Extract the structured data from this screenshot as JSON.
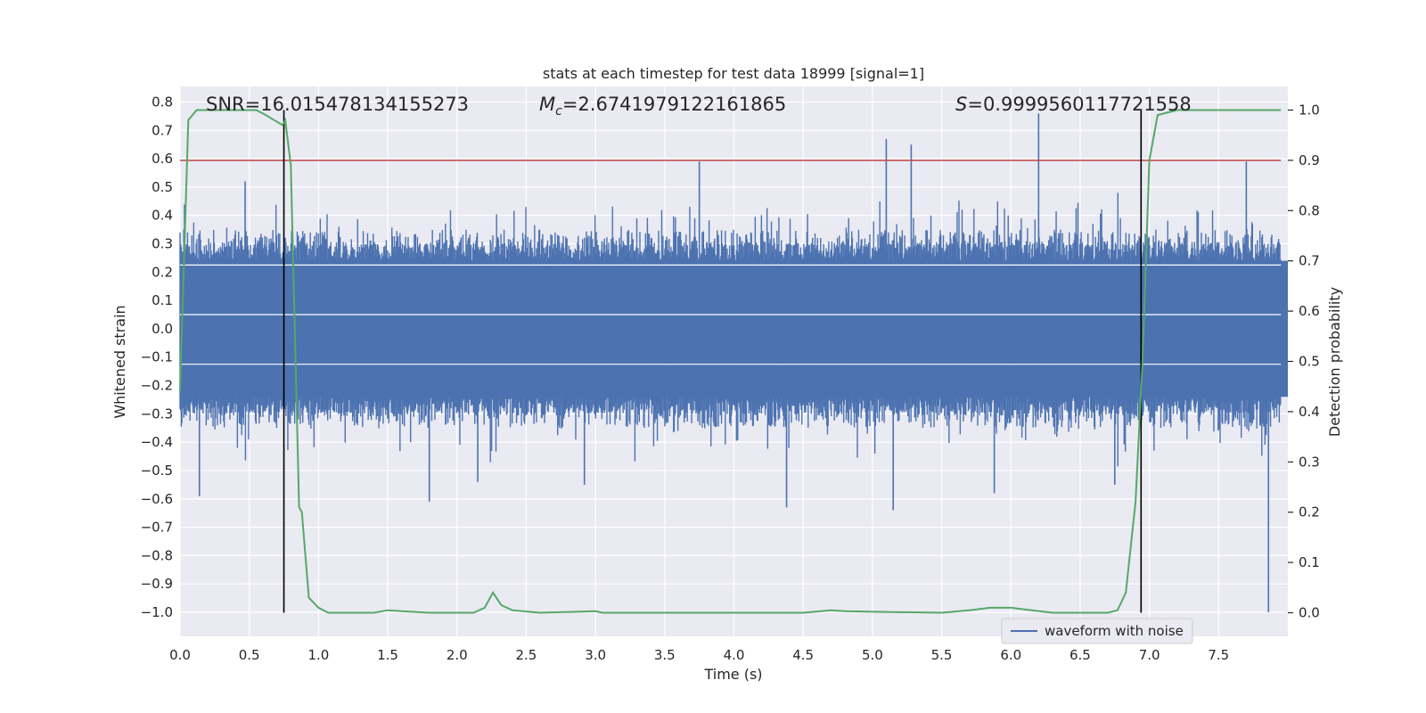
{
  "chart_data": {
    "type": "line",
    "title": "stats at each timestep for test data 18999 [signal=1]",
    "xlabel": "Time (s)",
    "ylabel": "Whitened strain",
    "y2label": "Detection probability",
    "xlim": [
      0.0,
      8.0
    ],
    "ylim": [
      -1.085,
      0.855
    ],
    "y2lim": [
      -0.047,
      1.047
    ],
    "x_ticks": [
      0.0,
      0.5,
      1.0,
      1.5,
      2.0,
      2.5,
      3.0,
      3.5,
      4.0,
      4.5,
      5.0,
      5.5,
      6.0,
      6.5,
      7.0,
      7.5
    ],
    "x_tick_labels": [
      "0.0",
      "0.5",
      "1.0",
      "1.5",
      "2.0",
      "2.5",
      "3.0",
      "3.5",
      "4.0",
      "4.5",
      "5.0",
      "5.5",
      "6.0",
      "6.5",
      "7.0",
      "7.5"
    ],
    "y_ticks": [
      0.8,
      0.7,
      0.6,
      0.5,
      0.4,
      0.3,
      0.2,
      0.1,
      0.0,
      -0.1,
      -0.2,
      -0.3,
      -0.4,
      -0.5,
      -0.6,
      -0.7,
      -0.8,
      -0.9,
      -1.0
    ],
    "y_tick_labels": [
      "0.8",
      "0.7",
      "0.6",
      "0.5",
      "0.4",
      "0.3",
      "0.2",
      "0.1",
      "0.0",
      "−0.1",
      "−0.2",
      "−0.3",
      "−0.4",
      "−0.5",
      "−0.6",
      "−0.7",
      "−0.8",
      "−0.9",
      "−1.0"
    ],
    "y2_ticks": [
      1.0,
      0.9,
      0.8,
      0.7,
      0.6,
      0.5,
      0.4,
      0.3,
      0.2,
      0.1,
      0.0
    ],
    "y2_tick_labels": [
      "1.0",
      "0.9",
      "0.8",
      "0.7",
      "0.6",
      "0.5",
      "0.4",
      "0.3",
      "0.2",
      "0.1",
      "0.0"
    ],
    "annotations": {
      "snr": "SNR=16.015478134155273",
      "mc_symbol": "M",
      "mc_sub": "c",
      "mc_value": "=2.6741979122161865",
      "s_symbol": "S",
      "s_value": "=0.9999560117721558"
    },
    "threshold_y2": 0.9,
    "vertical_lines_x": [
      0.75,
      6.94
    ],
    "waveform": {
      "name": "waveform with noise",
      "color": "#4c72b0",
      "core_band": [
        -0.24,
        0.24
      ],
      "noise_envelope": [
        -0.35,
        0.35
      ],
      "spikes": [
        {
          "t": 0.14,
          "v": -0.59
        },
        {
          "t": 0.47,
          "v": 0.52
        },
        {
          "t": 1.8,
          "v": -0.61
        },
        {
          "t": 2.15,
          "v": -0.54
        },
        {
          "t": 2.92,
          "v": -0.55
        },
        {
          "t": 3.75,
          "v": 0.59
        },
        {
          "t": 4.38,
          "v": -0.63
        },
        {
          "t": 5.1,
          "v": 0.67
        },
        {
          "t": 5.15,
          "v": -0.64
        },
        {
          "t": 5.28,
          "v": 0.65
        },
        {
          "t": 5.88,
          "v": -0.58
        },
        {
          "t": 6.2,
          "v": 0.76
        },
        {
          "t": 6.75,
          "v": -0.55
        },
        {
          "t": 7.7,
          "v": 0.59
        },
        {
          "t": 7.86,
          "v": -1.0
        }
      ]
    },
    "detection_probability": {
      "color": "#55a868",
      "x": [
        0.0,
        0.06,
        0.12,
        0.2,
        0.4,
        0.55,
        0.62,
        0.68,
        0.74,
        0.76,
        0.8,
        0.86,
        0.88,
        0.93,
        1.0,
        1.07,
        1.2,
        1.4,
        1.5,
        1.6,
        1.8,
        2.0,
        2.12,
        2.2,
        2.26,
        2.32,
        2.4,
        2.6,
        3.0,
        3.05,
        3.2,
        3.5,
        4.0,
        4.5,
        4.7,
        4.8,
        5.0,
        5.5,
        5.7,
        5.85,
        6.0,
        6.3,
        6.5,
        6.7,
        6.77,
        6.83,
        6.9,
        6.95,
        7.0,
        7.06,
        7.2,
        7.6,
        7.95
      ],
      "y": [
        0.44,
        0.98,
        1.0,
        1.0,
        1.0,
        1.0,
        0.99,
        0.98,
        0.97,
        0.98,
        0.89,
        0.21,
        0.2,
        0.03,
        0.01,
        0.0,
        0.0,
        0.0,
        0.005,
        0.003,
        0.0,
        0.0,
        0.0,
        0.01,
        0.04,
        0.015,
        0.005,
        0.0,
        0.003,
        0.0,
        0.0,
        0.0,
        0.0,
        0.0,
        0.005,
        0.003,
        0.002,
        0.0,
        0.005,
        0.01,
        0.01,
        0.0,
        0.0,
        0.0,
        0.005,
        0.04,
        0.22,
        0.5,
        0.9,
        0.99,
        1.0,
        1.0,
        1.0
      ]
    },
    "legend": {
      "label": "waveform with noise",
      "position": "lower-right"
    }
  }
}
